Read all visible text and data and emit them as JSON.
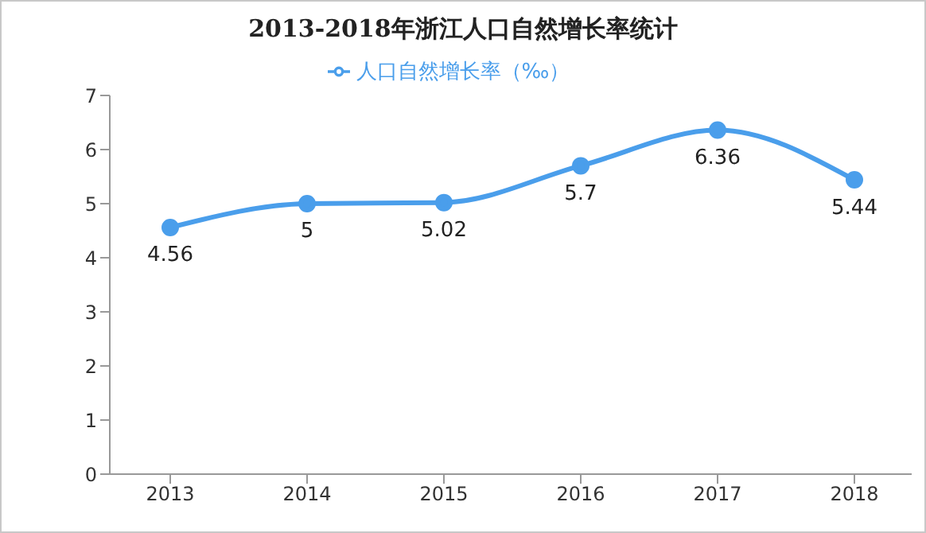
{
  "chart_data": {
    "type": "line",
    "title": "2013-2018年浙江人口自然增长率统计",
    "categories": [
      "2013",
      "2014",
      "2015",
      "2016",
      "2017",
      "2018"
    ],
    "series": [
      {
        "name": "人口自然增长率（‰）",
        "color": "#4a9eeb",
        "values": [
          4.56,
          5,
          5.02,
          5.7,
          6.36,
          5.44
        ]
      }
    ],
    "ylim": [
      0,
      7
    ],
    "yticks": [
      0,
      1,
      2,
      3,
      4,
      5,
      6,
      7
    ],
    "grid": false,
    "legend": "top",
    "marker": "circle",
    "line_style": "solid",
    "data_labels": true
  }
}
